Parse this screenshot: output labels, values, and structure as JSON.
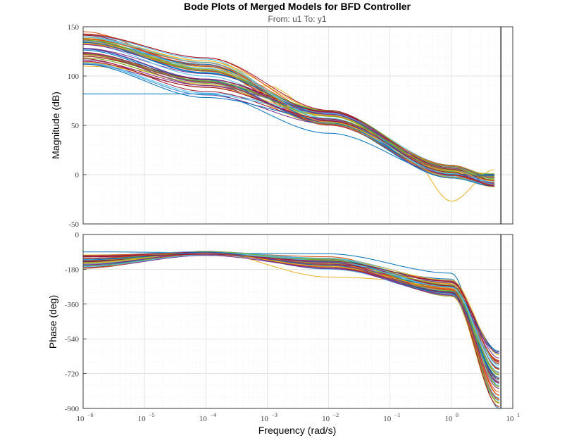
{
  "chart_data": {
    "type": "line",
    "title": "Bode Plots of Merged Models for BFD Controller",
    "subtitle": "From: u1  To: y1",
    "xlabel": "Frequency  (rad/s)",
    "xscale": "log",
    "xlim": [
      1e-06,
      10
    ],
    "x_ticks": [
      {
        "base": "10",
        "exp": "−6"
      },
      {
        "base": "10",
        "exp": "−5"
      },
      {
        "base": "10",
        "exp": "−4"
      },
      {
        "base": "10",
        "exp": "−3"
      },
      {
        "base": "10",
        "exp": "−2"
      },
      {
        "base": "10",
        "exp": "−1"
      },
      {
        "base": "10",
        "exp": "0"
      },
      {
        "base": "10",
        "exp": "1"
      }
    ],
    "grid": true,
    "vertical_marker_x": 6.4,
    "colors": [
      "#0072BD",
      "#D95319",
      "#EDB120",
      "#7E2F8E",
      "#77AC30",
      "#4DBEEE",
      "#A2142F"
    ],
    "magnitude": {
      "ylabel": "Magnitude (dB)",
      "ylim": [
        -50,
        150
      ],
      "y_ticks": [
        "150",
        "100",
        "50",
        "0",
        "-50"
      ],
      "y_tick_values": [
        150,
        100,
        50,
        0,
        -50
      ]
    },
    "phase": {
      "ylabel": "Phase (deg)",
      "ylim": [
        -900,
        0
      ],
      "y_ticks": [
        "0",
        "-180",
        "-360",
        "-540",
        "-720",
        "-900"
      ],
      "y_tick_values": [
        0,
        -180,
        -360,
        -540,
        -720,
        -900
      ]
    },
    "series_count": 56,
    "series_note": "56 overlapping model responses; magnitude roughly 82–145 dB at 1e-6 rad/s falling to about -5 to -25 dB near 5 rad/s; phase roughly -90 to -180 deg at low frequency rolling off to -900 deg near 6 rad/s",
    "example_series": [
      {
        "mag": [
          [
            1e-06,
            82
          ],
          [
            0.0001,
            82
          ],
          [
            0.01,
            42
          ],
          [
            1,
            0
          ],
          [
            5,
            -8
          ]
        ],
        "phase": [
          [
            1e-06,
            -90
          ],
          [
            0.01,
            -100
          ],
          [
            1,
            -200
          ],
          [
            6,
            -900
          ]
        ]
      },
      {
        "mag": [
          [
            1e-06,
            145
          ],
          [
            0.0001,
            105
          ],
          [
            0.01,
            55
          ],
          [
            1,
            5
          ],
          [
            5,
            -10
          ]
        ],
        "phase": [
          [
            1e-06,
            -150
          ],
          [
            0.0001,
            -95
          ],
          [
            0.01,
            -115
          ],
          [
            1,
            -280
          ],
          [
            6,
            -850
          ]
        ]
      },
      {
        "mag": [
          [
            1e-06,
            110
          ],
          [
            0.001,
            90
          ],
          [
            0.01,
            55
          ],
          [
            0.2,
            20
          ],
          [
            1,
            -27
          ],
          [
            5,
            5
          ]
        ],
        "phase": [
          [
            1e-06,
            -170
          ],
          [
            0.0001,
            -90
          ],
          [
            0.01,
            -220
          ],
          [
            1,
            -250
          ],
          [
            6,
            -700
          ]
        ]
      }
    ]
  }
}
